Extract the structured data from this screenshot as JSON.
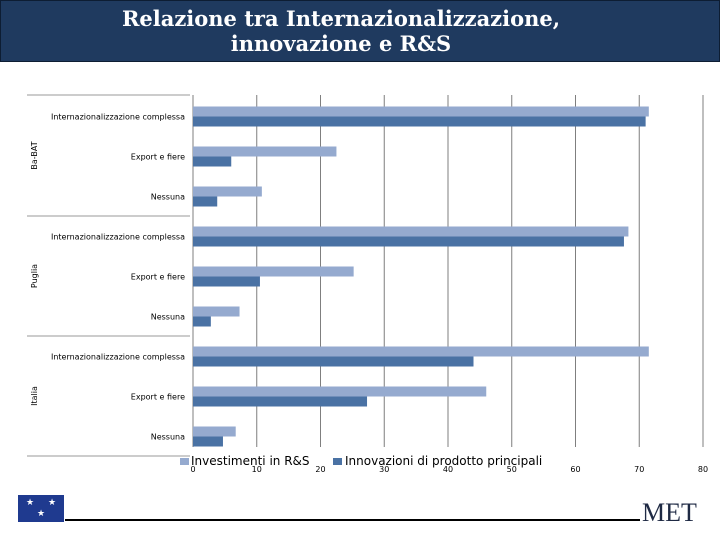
{
  "header": {
    "title_line1": "Relazione tra Internazionalizzazione,",
    "title_line2": "innovazione e R&S"
  },
  "colors": {
    "header_bg": "#1f3a5f",
    "series_light": "#95aacf",
    "series_dark": "#4a72a4",
    "gridline": "#7f7f7f"
  },
  "chart_data": {
    "type": "bar",
    "orientation": "horizontal",
    "title": "Relazione tra Internazionalizzazione, innovazione e R&S",
    "xlabel": "",
    "ylabel": "",
    "xlim": [
      0,
      80
    ],
    "xticks": [
      0,
      10,
      20,
      30,
      40,
      50,
      60,
      70,
      80
    ],
    "grid": true,
    "legend_position": "bottom",
    "groups": [
      {
        "name": "Ba-BAT",
        "categories": [
          "Internazionalizzazione complessa",
          "Export e fiere",
          "Nessuna"
        ]
      },
      {
        "name": "Puglia",
        "categories": [
          "Internazionalizzazione complessa",
          "Export e fiere",
          "Nessuna"
        ]
      },
      {
        "name": "Italia",
        "categories": [
          "Internazionalizzazione complessa",
          "Export e fiere",
          "Nessuna"
        ]
      }
    ],
    "series": [
      {
        "name": "Investimenti in R&S",
        "color": "#95aacf",
        "values": [
          71.5,
          22.5,
          10.8,
          68.3,
          25.2,
          7.3,
          71.5,
          46.0,
          6.7
        ]
      },
      {
        "name": "Innovazioni di prodotto principali",
        "color": "#4a72a4",
        "values": [
          71.0,
          6.0,
          3.8,
          67.6,
          10.5,
          2.8,
          44.0,
          27.3,
          4.7
        ]
      }
    ]
  },
  "footer": {
    "logo_text": "MET",
    "flag_icon": "eu-flag-icon"
  }
}
